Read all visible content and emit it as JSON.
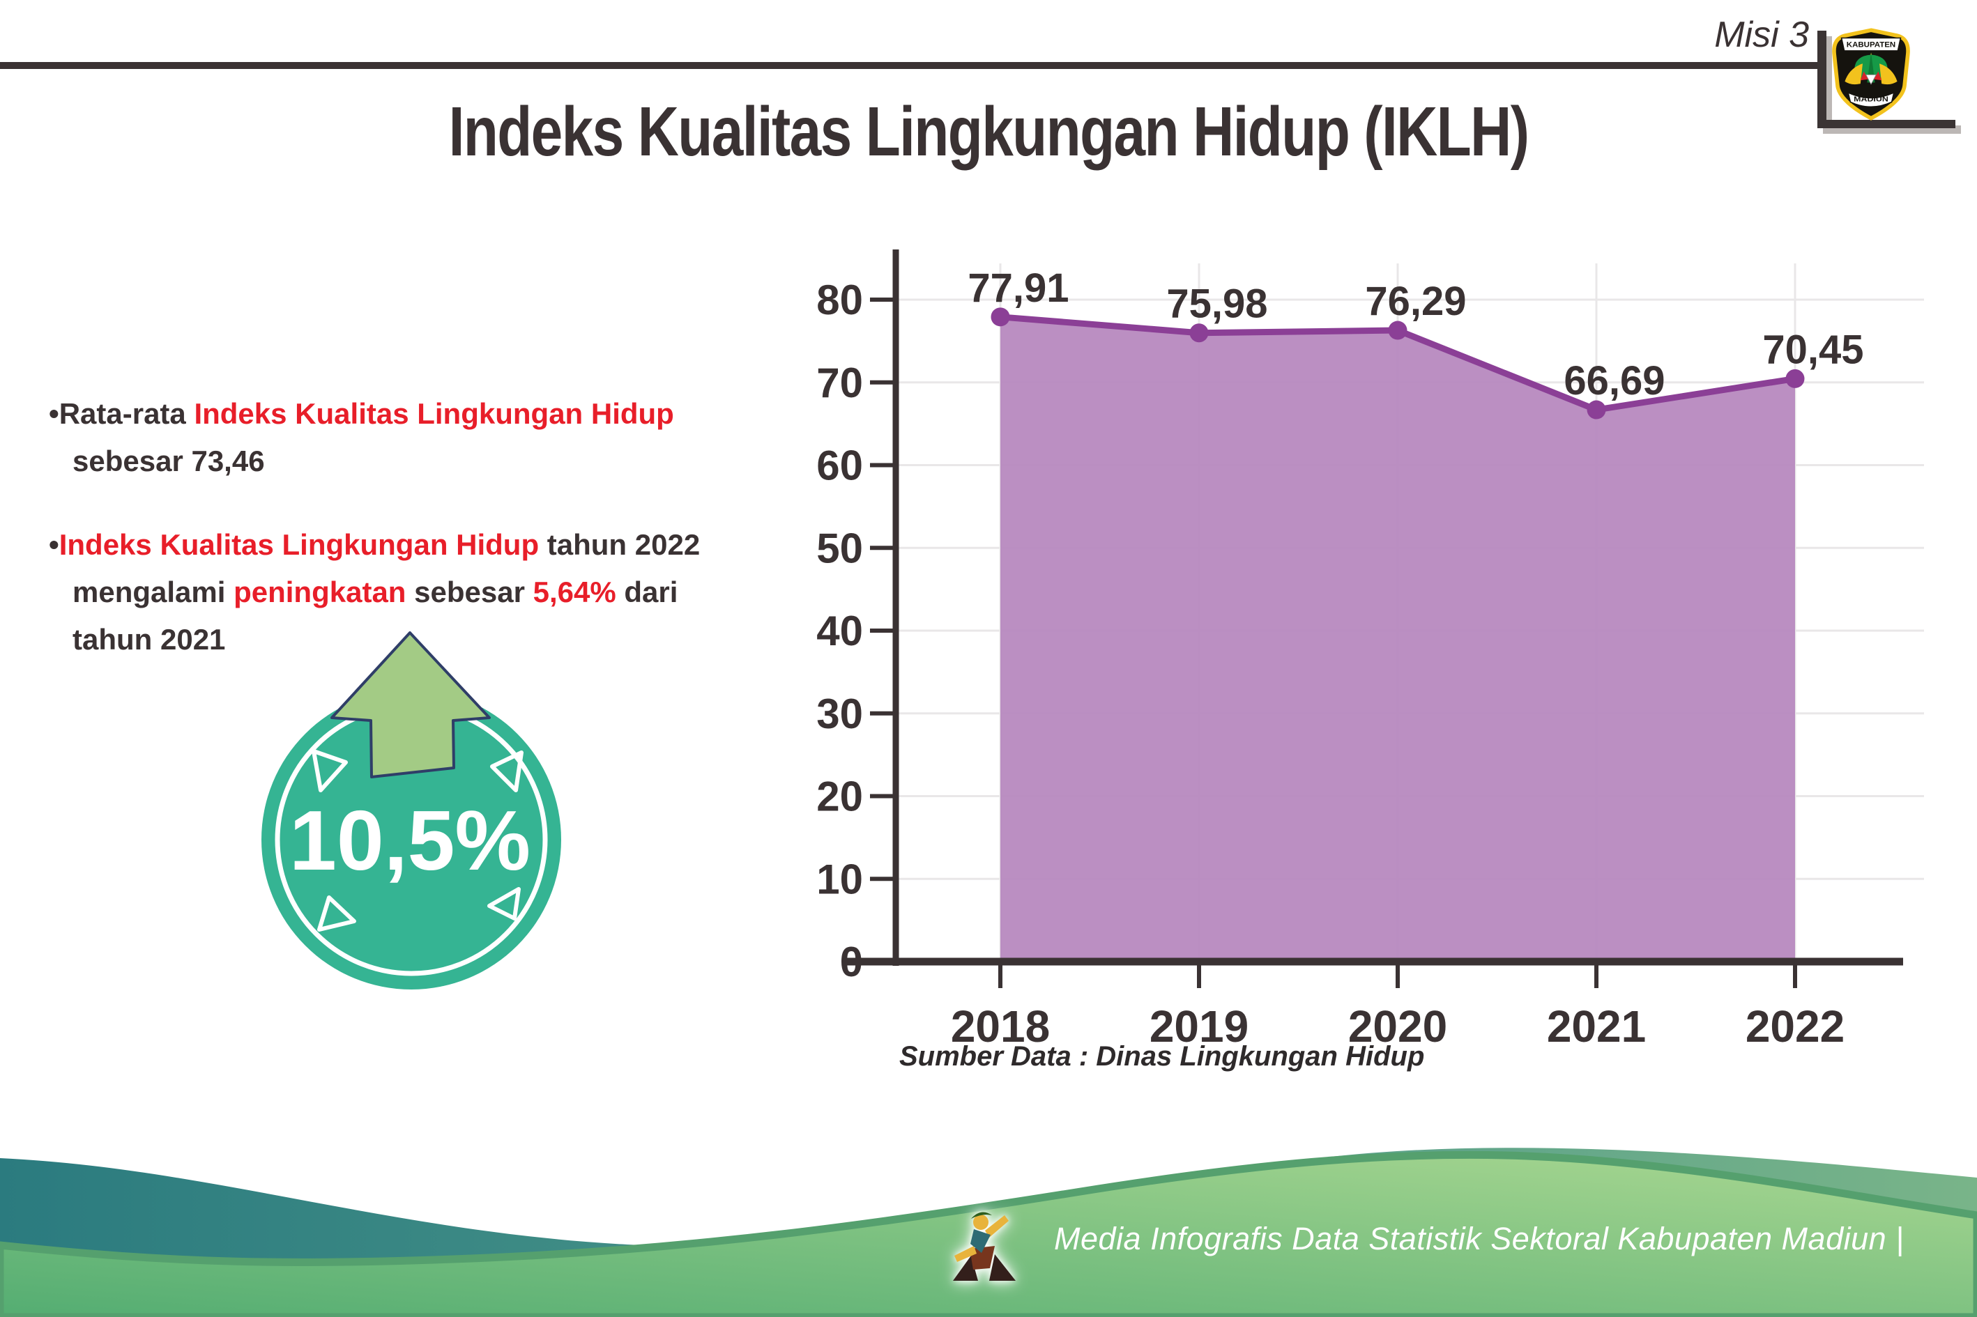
{
  "header": {
    "misi_label": "Misi 3",
    "title": "Indeks Kualitas Lingkungan Hidup (IKLH)",
    "logo": {
      "top_text": "KABUPATEN",
      "bottom_text": "MADIUN"
    }
  },
  "bullets": {
    "bullet1": {
      "lines": [
        [
          {
            "t": "•Rata-rata ",
            "c": "dark"
          },
          {
            "t": "Indeks Kualitas Lingkungan Hidup",
            "c": "red"
          }
        ],
        [
          {
            "t": "sebesar 73,46",
            "c": "dark"
          }
        ]
      ]
    },
    "bullet2": {
      "lines": [
        [
          {
            "t": "•",
            "c": "dark"
          },
          {
            "t": "Indeks Kualitas Lingkungan Hidup",
            "c": "red"
          },
          {
            "t": " tahun 2022",
            "c": "dark"
          }
        ],
        [
          {
            "t": "mengalami ",
            "c": "dark"
          },
          {
            "t": "peningkatan",
            "c": "red"
          },
          {
            "t": " sebesar ",
            "c": "dark"
          },
          {
            "t": "5,64%",
            "c": "red"
          },
          {
            "t": " dari",
            "c": "dark"
          }
        ],
        [
          {
            "t": "tahun 2021",
            "c": "dark"
          }
        ]
      ]
    }
  },
  "badge": {
    "value": "10,5%",
    "circle_color": "#35b493",
    "arrow_color": "#a3cb85",
    "arrow_outline": "#2f3e68"
  },
  "chart_data": {
    "type": "area",
    "title": "",
    "categories": [
      "2018",
      "2019",
      "2020",
      "2021",
      "2022"
    ],
    "values": [
      77.91,
      75.98,
      76.29,
      66.69,
      70.45
    ],
    "value_labels": [
      "77,91",
      "75,98",
      "76,29",
      "66,69",
      "70,45"
    ],
    "xlabel": "",
    "ylabel": "",
    "ylim": [
      0,
      80
    ],
    "ytick_step": 10,
    "grid": true,
    "legend": false,
    "colors": {
      "area": "#b687bd",
      "line": "#8b3f96",
      "marker": "#8b3f96",
      "axis": "#3a3233",
      "grid": "#e9e7e8",
      "value_label": "#3a3233"
    }
  },
  "source_note": "Sumber Data : Dinas Lingkungan Hidup",
  "footer": {
    "caption": "Media Infografis Data Statistik Sektoral Kabupaten Madiun |",
    "teal_band_color": "#2c7c80",
    "green_hill_color": "#58b075"
  },
  "colors": {
    "dark_text": "#3a3233",
    "red_accent": "#e81e29"
  }
}
